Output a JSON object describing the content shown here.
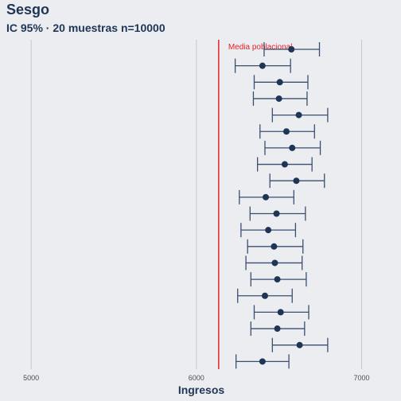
{
  "chart_data": {
    "type": "errorbar",
    "title": "Sesgo",
    "subtitle": "IC 95% · 20 muestras n=10000",
    "xlabel": "Ingresos",
    "ylabel": "",
    "xlim": [
      4850,
      7200
    ],
    "x_ticks": [
      5000,
      6000,
      7000
    ],
    "x_tick_labels": [
      "5000",
      "6000",
      "7000"
    ],
    "grid": "vertical major",
    "reference_line": {
      "x": 6135,
      "label": "Media poblacional",
      "color": "#e8202a"
    },
    "samples": [
      {
        "mean": 6575,
        "lower": 6410,
        "upper": 6745
      },
      {
        "mean": 6400,
        "lower": 6235,
        "upper": 6570
      },
      {
        "mean": 6505,
        "lower": 6350,
        "upper": 6675
      },
      {
        "mean": 6500,
        "lower": 6345,
        "upper": 6670
      },
      {
        "mean": 6620,
        "lower": 6460,
        "upper": 6795
      },
      {
        "mean": 6545,
        "lower": 6385,
        "upper": 6715
      },
      {
        "mean": 6580,
        "lower": 6415,
        "upper": 6750
      },
      {
        "mean": 6535,
        "lower": 6370,
        "upper": 6700
      },
      {
        "mean": 6605,
        "lower": 6445,
        "upper": 6775
      },
      {
        "mean": 6420,
        "lower": 6260,
        "upper": 6590
      },
      {
        "mean": 6485,
        "lower": 6325,
        "upper": 6660
      },
      {
        "mean": 6435,
        "lower": 6270,
        "upper": 6600
      },
      {
        "mean": 6470,
        "lower": 6310,
        "upper": 6645
      },
      {
        "mean": 6475,
        "lower": 6300,
        "upper": 6640
      },
      {
        "mean": 6490,
        "lower": 6330,
        "upper": 6665
      },
      {
        "mean": 6415,
        "lower": 6250,
        "upper": 6580
      },
      {
        "mean": 6510,
        "lower": 6350,
        "upper": 6680
      },
      {
        "mean": 6490,
        "lower": 6330,
        "upper": 6655
      },
      {
        "mean": 6625,
        "lower": 6460,
        "upper": 6795
      },
      {
        "mean": 6400,
        "lower": 6240,
        "upper": 6560
      }
    ],
    "colors": {
      "point": "#1f3556",
      "errorbar": "#3a4f70",
      "reference": "#e8202a",
      "grid": "#c3c6cc",
      "background": "#ebedf0"
    }
  }
}
